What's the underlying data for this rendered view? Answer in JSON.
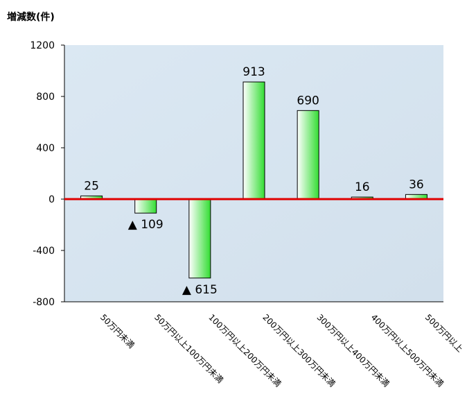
{
  "chart_data": {
    "type": "bar",
    "ylabel": "増減数(件)",
    "ylim": [
      -800,
      1200
    ],
    "yticks": [
      1200,
      800,
      400,
      0,
      -400,
      -800
    ],
    "categories": [
      "50万円未満",
      "50万円以上100万円未満",
      "100万円以上200万円未満",
      "200万円以上300万円未満",
      "300万円以上400万円未満",
      "400万円以上500万円未満",
      "500万円以上"
    ],
    "values": [
      25,
      -109,
      -615,
      913,
      690,
      16,
      36
    ],
    "data_labels": [
      "25",
      "▲ 109",
      "▲ 615",
      "913",
      "690",
      "16",
      "36"
    ],
    "grid": false,
    "colors": {
      "zero_line": "#e00000",
      "bar_edge": "#ffffff",
      "bar_mid": "#33dd33",
      "plot_bg": "#d8e6f1"
    }
  }
}
